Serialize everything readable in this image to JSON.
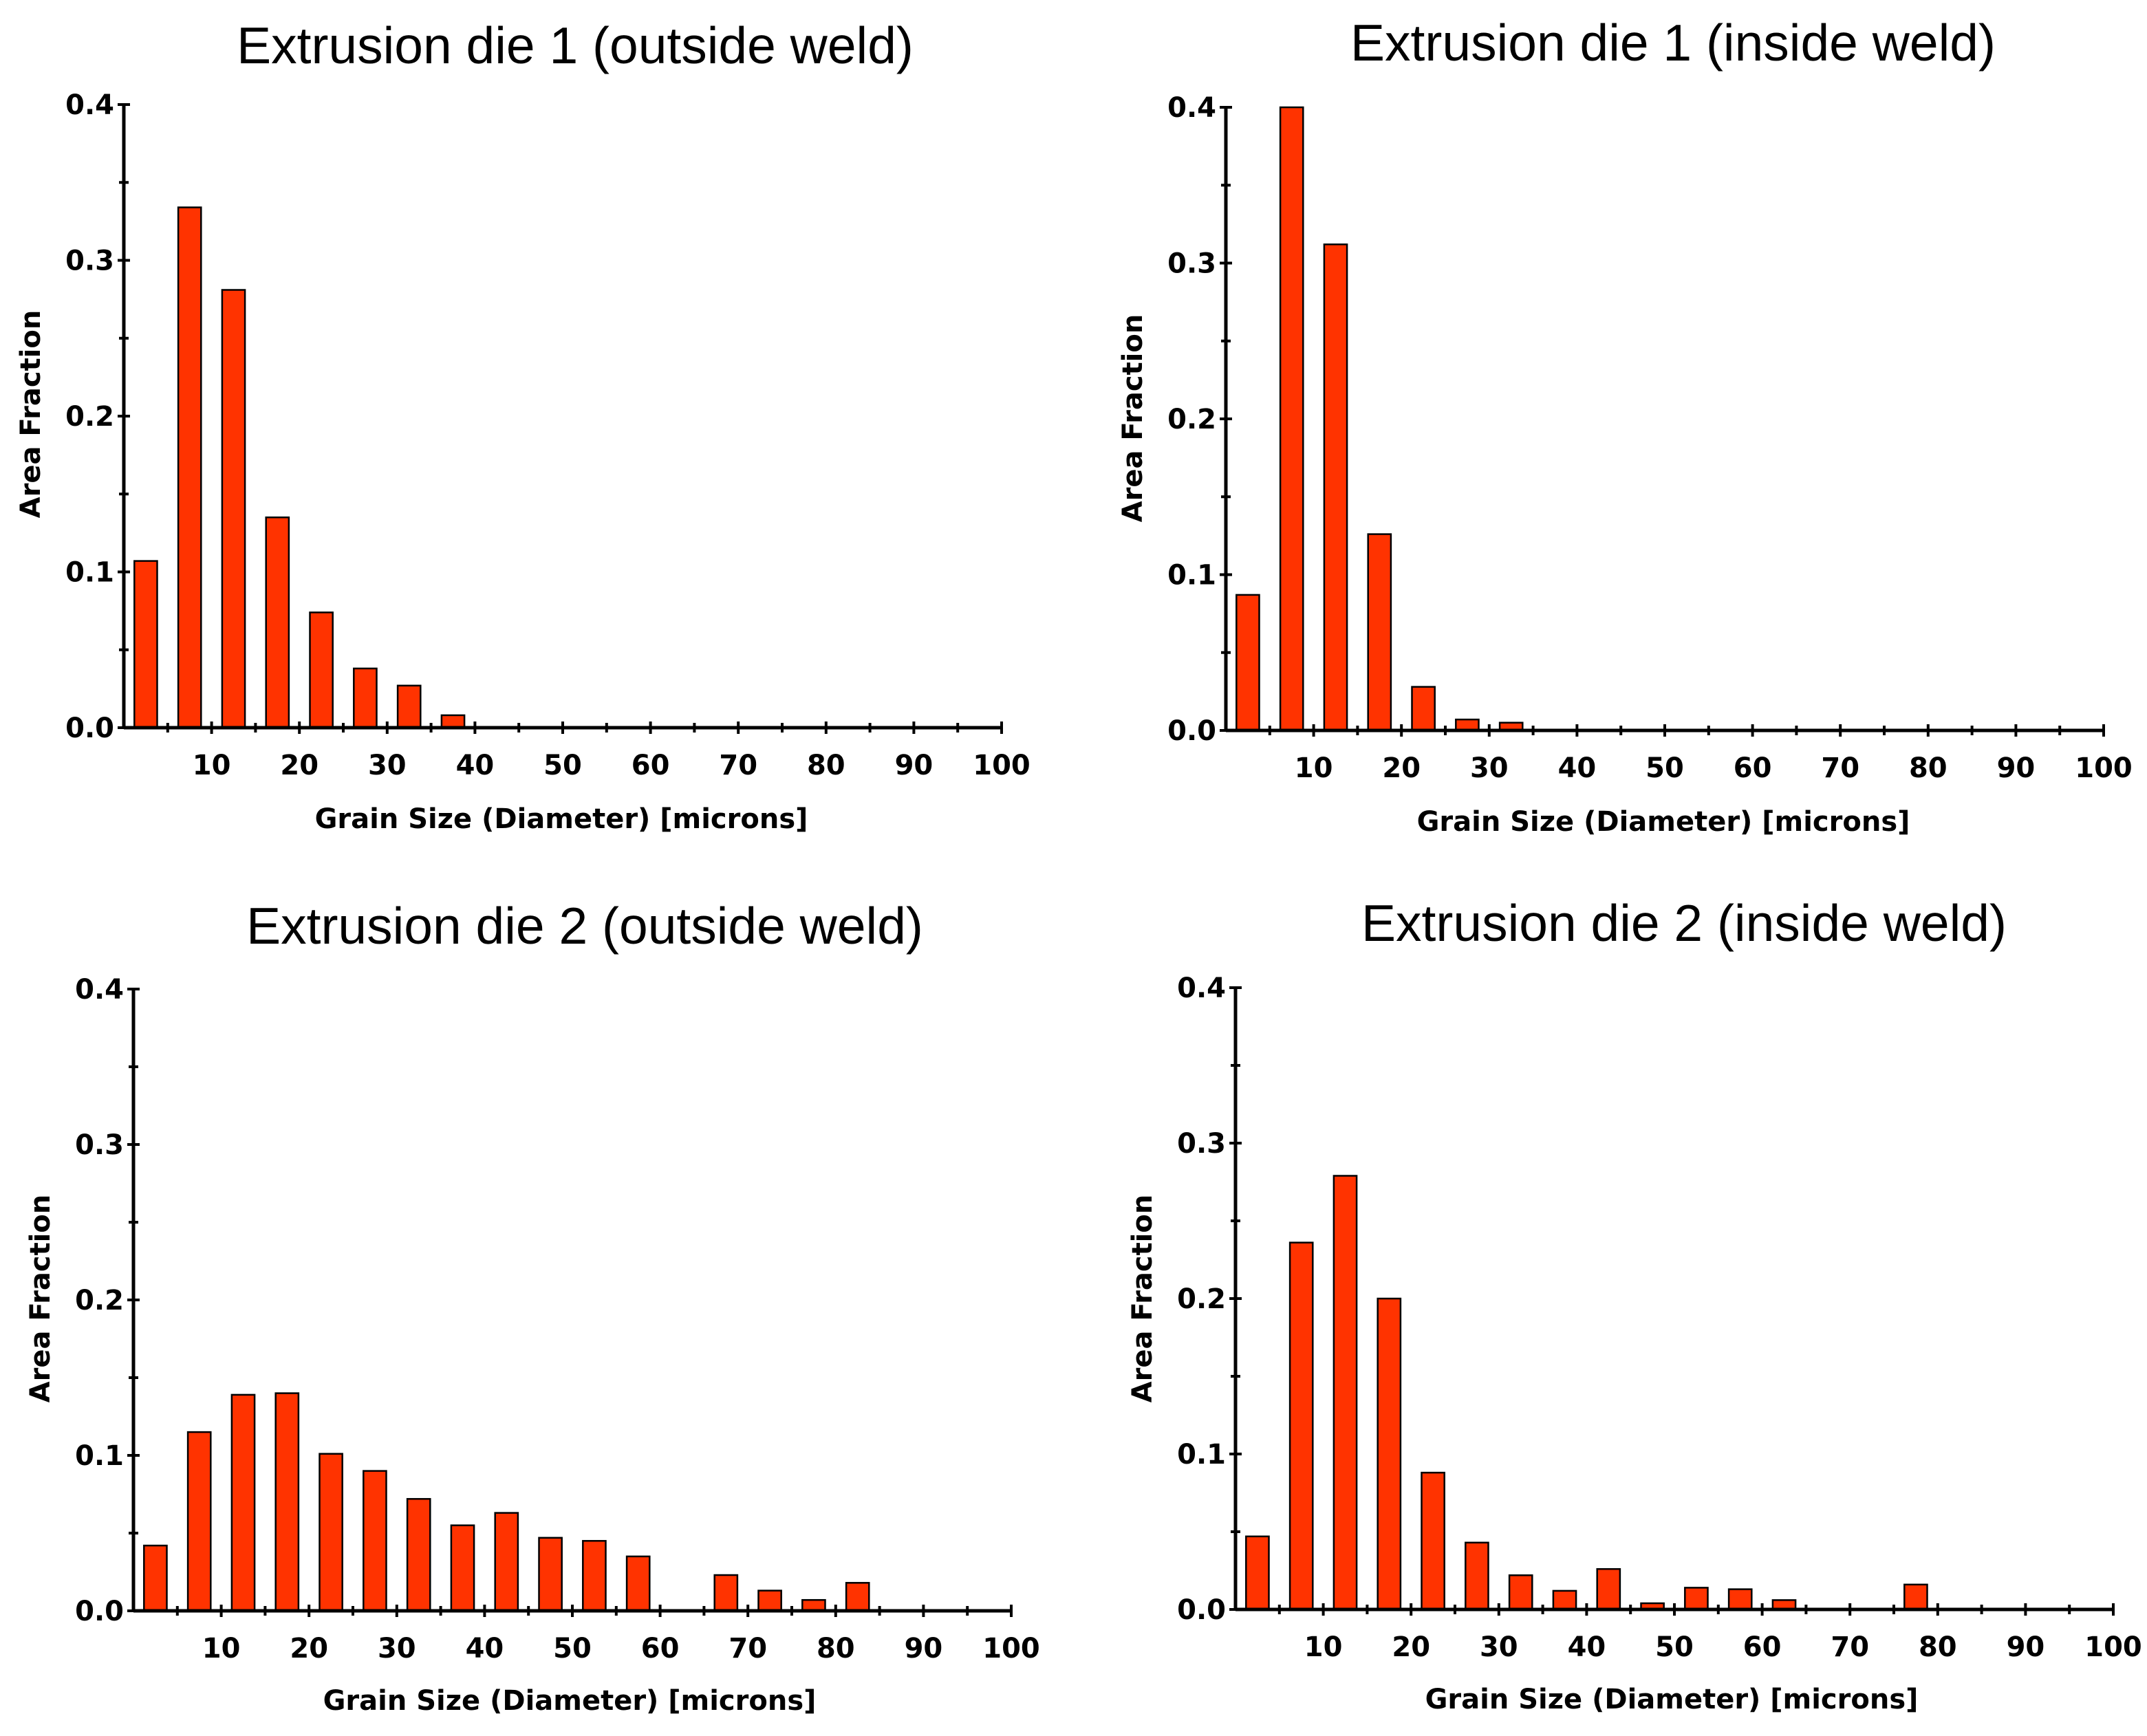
{
  "chart_data": [
    {
      "type": "bar",
      "title": "Extrusion die 1 (outside weld)",
      "xlabel": "Grain Size (Diameter) [microns]",
      "ylabel": "Area Fraction",
      "xlim": [
        0,
        100
      ],
      "ylim": [
        0,
        0.4
      ],
      "xticks": [
        "10",
        "20",
        "30",
        "40",
        "50",
        "60",
        "70",
        "80",
        "90",
        "100"
      ],
      "yticks": [
        "0.0",
        "0.1",
        "0.2",
        "0.3",
        "0.4"
      ],
      "grid": false,
      "x": [
        2.5,
        7.5,
        12.5,
        17.5,
        22.5,
        27.5,
        32.5,
        37.5
      ],
      "values": [
        0.107,
        0.334,
        0.281,
        0.135,
        0.074,
        0.038,
        0.027,
        0.008
      ]
    },
    {
      "type": "bar",
      "title": "Extrusion die 1 (inside weld)",
      "xlabel": "Grain Size (Diameter) [microns]",
      "ylabel": "Area Fraction",
      "xlim": [
        0,
        100
      ],
      "ylim": [
        0,
        0.4
      ],
      "xticks": [
        "10",
        "20",
        "30",
        "40",
        "50",
        "60",
        "70",
        "80",
        "90",
        "100"
      ],
      "yticks": [
        "0.0",
        "0.1",
        "0.2",
        "0.3",
        "0.4"
      ],
      "grid": false,
      "x": [
        2.5,
        7.5,
        12.5,
        17.5,
        22.5,
        27.5,
        32.5
      ],
      "values": [
        0.087,
        0.4,
        0.312,
        0.126,
        0.028,
        0.007,
        0.005
      ]
    },
    {
      "type": "bar",
      "title": "Extrusion die 2 (outside weld)",
      "xlabel": "Grain Size (Diameter) [microns]",
      "ylabel": "Area Fraction",
      "xlim": [
        0,
        100
      ],
      "ylim": [
        0,
        0.4
      ],
      "xticks": [
        "10",
        "20",
        "30",
        "40",
        "50",
        "60",
        "70",
        "80",
        "90",
        "100"
      ],
      "yticks": [
        "0.0",
        "0.1",
        "0.2",
        "0.3",
        "0.4"
      ],
      "grid": false,
      "x": [
        2.5,
        7.5,
        12.5,
        17.5,
        22.5,
        27.5,
        32.5,
        37.5,
        42.5,
        47.5,
        52.5,
        57.5,
        67.5,
        72.5,
        77.5,
        82.5
      ],
      "values": [
        0.042,
        0.115,
        0.139,
        0.14,
        0.101,
        0.09,
        0.072,
        0.055,
        0.063,
        0.047,
        0.045,
        0.035,
        0.023,
        0.013,
        0.007,
        0.018
      ]
    },
    {
      "type": "bar",
      "title": "Extrusion die 2 (inside weld)",
      "xlabel": "Grain Size (Diameter) [microns]",
      "ylabel": "Area Fraction",
      "xlim": [
        0,
        100
      ],
      "ylim": [
        0,
        0.4
      ],
      "xticks": [
        "10",
        "20",
        "30",
        "40",
        "50",
        "60",
        "70",
        "80",
        "90",
        "100"
      ],
      "yticks": [
        "0.0",
        "0.1",
        "0.2",
        "0.3",
        "0.4"
      ],
      "grid": false,
      "x": [
        2.5,
        7.5,
        12.5,
        17.5,
        22.5,
        27.5,
        32.5,
        37.5,
        42.5,
        47.5,
        52.5,
        57.5,
        62.5,
        77.5
      ],
      "values": [
        0.047,
        0.236,
        0.279,
        0.2,
        0.088,
        0.043,
        0.022,
        0.012,
        0.026,
        0.004,
        0.014,
        0.013,
        0.006,
        0.016
      ]
    }
  ],
  "colors": {
    "bar_fill": "#ff3300",
    "bar_edge": "#000000",
    "axis": "#000000",
    "background": "#ffffff"
  }
}
